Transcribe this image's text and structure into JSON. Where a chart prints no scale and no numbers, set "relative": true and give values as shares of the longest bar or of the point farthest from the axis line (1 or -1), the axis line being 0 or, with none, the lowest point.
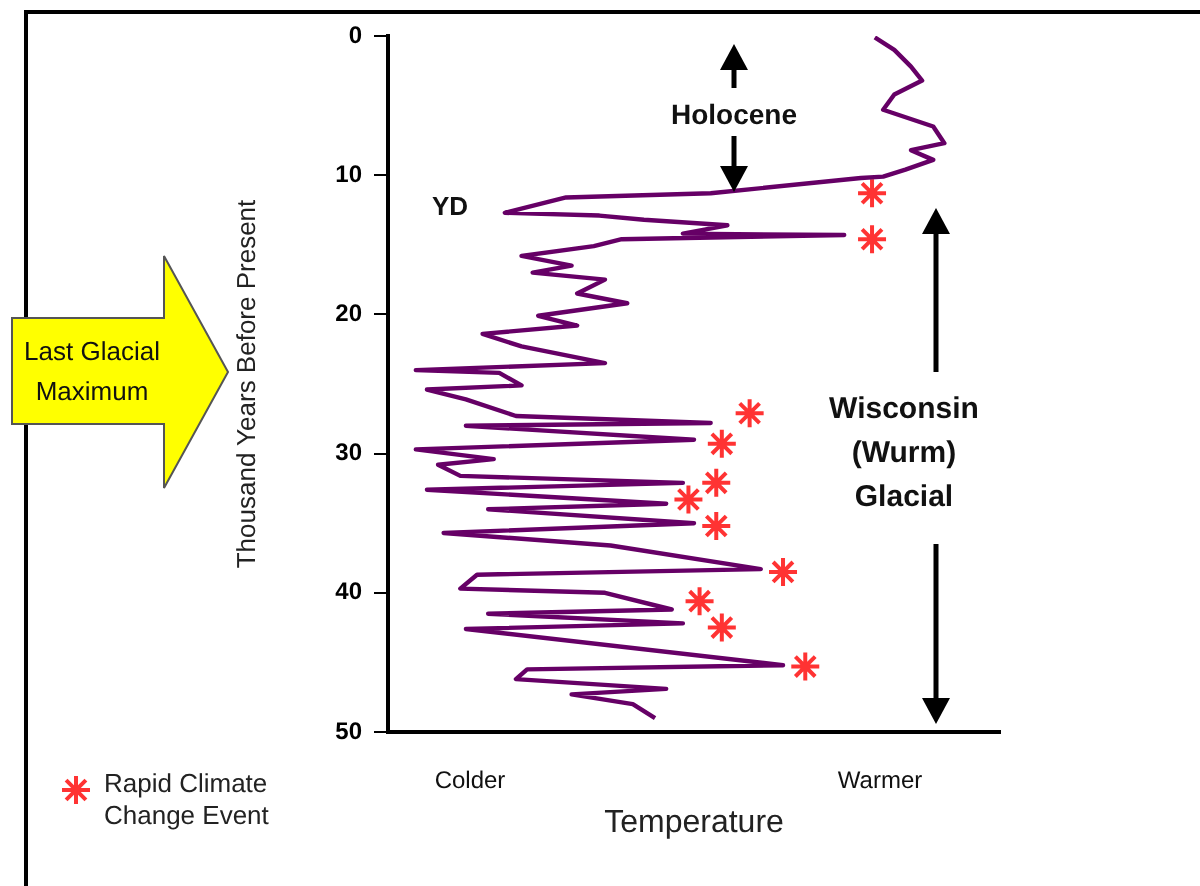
{
  "chart_data": {
    "type": "line",
    "orientation": "horizontal",
    "relative": true,
    "xlabel": "Temperature",
    "ylabel": "Thousand Years Before Present",
    "ylim": [
      50,
      0
    ],
    "yticks": [
      0,
      10,
      20,
      30,
      40,
      50
    ],
    "legend": "bottom left",
    "annotations": [
      "Holocene",
      "YD",
      "Wisconsin (Wurm) Glacial",
      "Last Glacial Maximum",
      "Colder",
      "Warmer"
    ],
    "series": [
      {
        "type": "line",
        "color": "#660066",
        "marker": "none",
        "x": [
          0.1,
          1.0,
          2.2,
          3.2,
          4.2,
          5.3,
          6.5,
          7.7,
          8.2,
          8.9,
          9.6,
          10.1,
          10.2,
          11.3,
          11.6,
          12.7,
          12.9,
          13.2,
          13.6,
          14.2,
          14.3,
          14.6,
          15.1,
          15.8,
          16.5,
          17.0,
          17.5,
          18.5,
          19.2,
          20.1,
          20.8,
          21.4,
          22.3,
          23.5,
          24.0,
          24.2,
          25.1,
          25.4,
          26.1,
          27.3,
          27.8,
          28.0,
          29.0,
          29.7,
          30.4,
          30.8,
          31.6,
          32.1,
          32.6,
          33.6,
          34.0,
          35.0,
          35.7,
          36.6,
          38.3,
          38.7,
          39.7,
          40.0,
          41.2,
          41.5,
          42.2,
          42.6,
          45.2,
          45.5,
          46.2,
          46.9,
          47.3,
          48.0,
          49.0
        ],
        "values": [
          0.875,
          0.91,
          0.94,
          0.96,
          0.91,
          0.89,
          0.98,
          1.0,
          0.94,
          0.98,
          0.93,
          0.89,
          0.85,
          0.58,
          0.32,
          0.21,
          0.38,
          0.46,
          0.61,
          0.53,
          0.82,
          0.42,
          0.37,
          0.24,
          0.33,
          0.26,
          0.39,
          0.34,
          0.43,
          0.27,
          0.34,
          0.17,
          0.24,
          0.39,
          0.05,
          0.2,
          0.24,
          0.07,
          0.14,
          0.23,
          0.58,
          0.14,
          0.55,
          0.05,
          0.19,
          0.09,
          0.13,
          0.53,
          0.07,
          0.5,
          0.18,
          0.55,
          0.1,
          0.4,
          0.67,
          0.16,
          0.13,
          0.39,
          0.51,
          0.18,
          0.53,
          0.14,
          0.71,
          0.25,
          0.23,
          0.5,
          0.33,
          0.44,
          0.48
        ]
      },
      {
        "type": "scatter",
        "name": "Rapid Climate Change Event",
        "color": "#ff3333",
        "marker": "cross",
        "x": [
          11.3,
          14.6,
          27.1,
          29.3,
          32.1,
          33.3,
          35.2,
          38.5,
          40.6,
          42.5,
          45.3
        ],
        "values": [
          0.87,
          0.87,
          0.65,
          0.6,
          0.59,
          0.54,
          0.59,
          0.71,
          0.56,
          0.6,
          0.75
        ]
      }
    ]
  }
}
